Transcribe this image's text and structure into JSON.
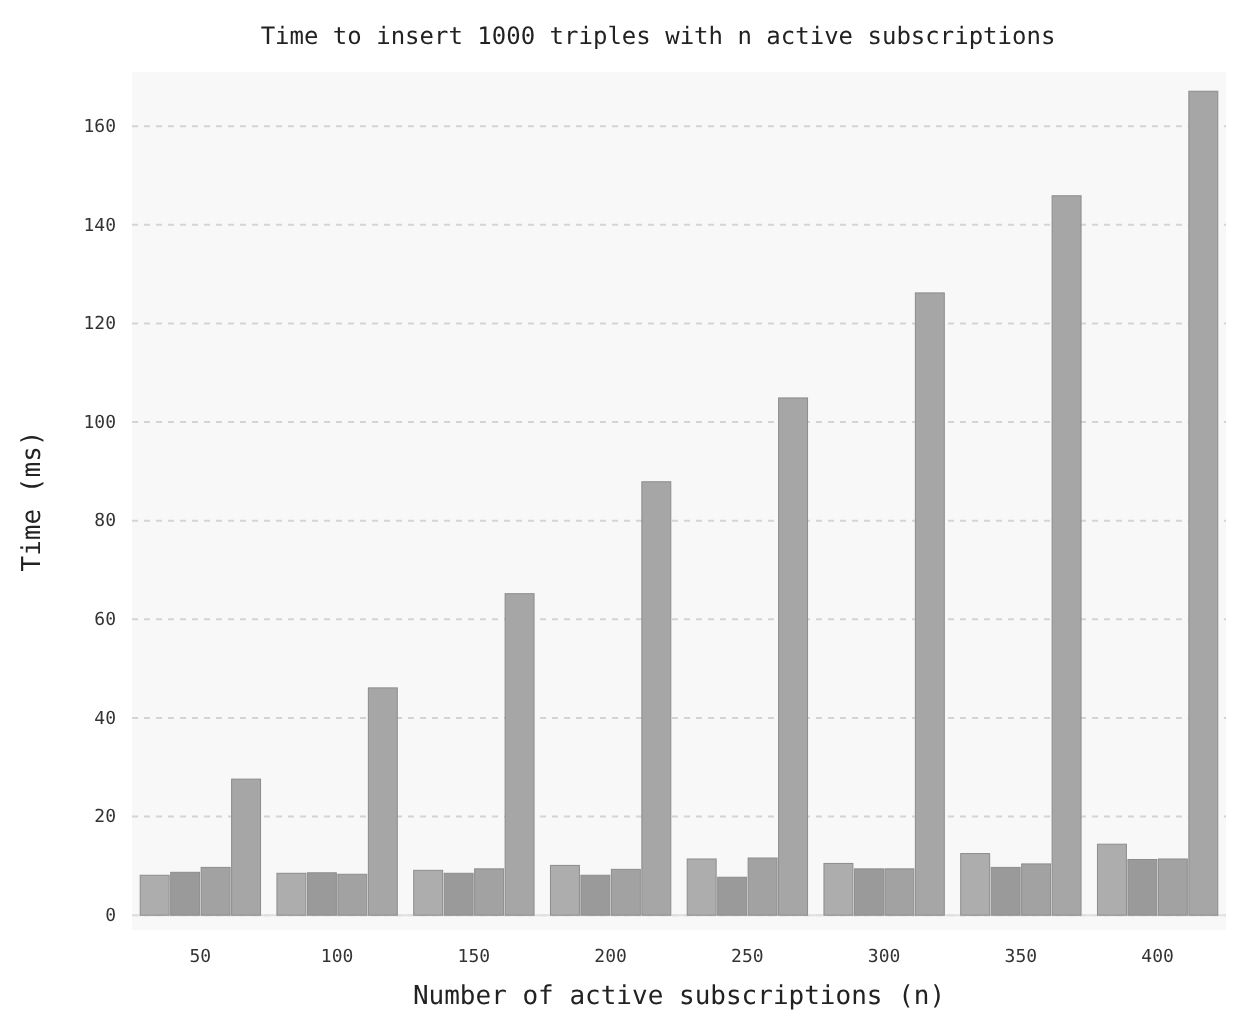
{
  "chart_data": {
    "type": "bar",
    "title": "Time to insert 1000 triples with n active subscriptions",
    "xlabel": "Number of active subscriptions (n)",
    "ylabel": "Time (ms)",
    "categories": [
      "50",
      "100",
      "150",
      "200",
      "250",
      "300",
      "350",
      "400"
    ],
    "series": [
      {
        "color": "#adadad",
        "values": [
          8.1,
          8.5,
          9.1,
          10.1,
          11.4,
          10.5,
          12.5,
          14.4
        ]
      },
      {
        "color": "#9a9a9a",
        "values": [
          8.7,
          8.6,
          8.5,
          8.1,
          7.7,
          9.4,
          9.7,
          11.3
        ]
      },
      {
        "color": "#a2a2a2",
        "values": [
          9.7,
          8.3,
          9.4,
          9.3,
          11.6,
          9.4,
          10.4,
          11.4
        ]
      },
      {
        "color": "#a6a6a6",
        "values": [
          27.6,
          46.1,
          65.2,
          87.9,
          104.9,
          126.2,
          145.9,
          167.1
        ]
      }
    ],
    "ylim": [
      -3,
      171
    ],
    "yticks": [
      0,
      20,
      40,
      60,
      80,
      100,
      120,
      140,
      160
    ],
    "grid": "y"
  }
}
